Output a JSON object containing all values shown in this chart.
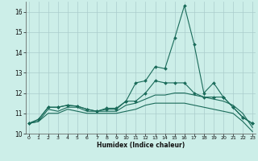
{
  "xlabel": "Humidex (Indice chaleur)",
  "background_color": "#cceee8",
  "grid_color": "#aacccc",
  "line_color": "#1a6b5a",
  "x": [
    0,
    1,
    2,
    3,
    4,
    5,
    6,
    7,
    8,
    9,
    10,
    11,
    12,
    13,
    14,
    15,
    16,
    17,
    18,
    19,
    20,
    21,
    22,
    23
  ],
  "line1": [
    10.5,
    10.7,
    11.3,
    11.3,
    11.4,
    11.35,
    11.2,
    11.1,
    11.25,
    11.25,
    11.6,
    12.5,
    12.6,
    13.3,
    13.2,
    14.7,
    16.3,
    14.4,
    12.0,
    12.5,
    11.8,
    11.3,
    10.8,
    10.5
  ],
  "line2": [
    10.5,
    10.7,
    11.3,
    11.3,
    11.4,
    11.35,
    11.2,
    11.1,
    11.2,
    11.2,
    11.6,
    11.6,
    12.0,
    12.6,
    12.5,
    12.5,
    12.5,
    12.0,
    11.8,
    11.8,
    11.8,
    11.3,
    10.8,
    10.5
  ],
  "line3": [
    10.5,
    10.6,
    11.2,
    11.1,
    11.3,
    11.3,
    11.1,
    11.1,
    11.1,
    11.1,
    11.4,
    11.5,
    11.7,
    11.9,
    11.9,
    12.0,
    12.0,
    11.9,
    11.8,
    11.7,
    11.6,
    11.4,
    11.0,
    10.3
  ],
  "line4": [
    10.5,
    10.6,
    11.0,
    11.0,
    11.2,
    11.1,
    11.0,
    11.0,
    11.0,
    11.0,
    11.1,
    11.2,
    11.4,
    11.5,
    11.5,
    11.5,
    11.5,
    11.4,
    11.3,
    11.2,
    11.1,
    11.0,
    10.6,
    10.1
  ],
  "ylim": [
    10,
    16.5
  ],
  "xlim": [
    -0.3,
    23.3
  ],
  "yticks": [
    10,
    11,
    12,
    13,
    14,
    15,
    16
  ],
  "xticks": [
    0,
    1,
    2,
    3,
    4,
    5,
    6,
    7,
    8,
    9,
    10,
    11,
    12,
    13,
    14,
    15,
    16,
    17,
    18,
    19,
    20,
    21,
    22,
    23
  ],
  "markersize": 2.0,
  "linewidth": 0.8
}
